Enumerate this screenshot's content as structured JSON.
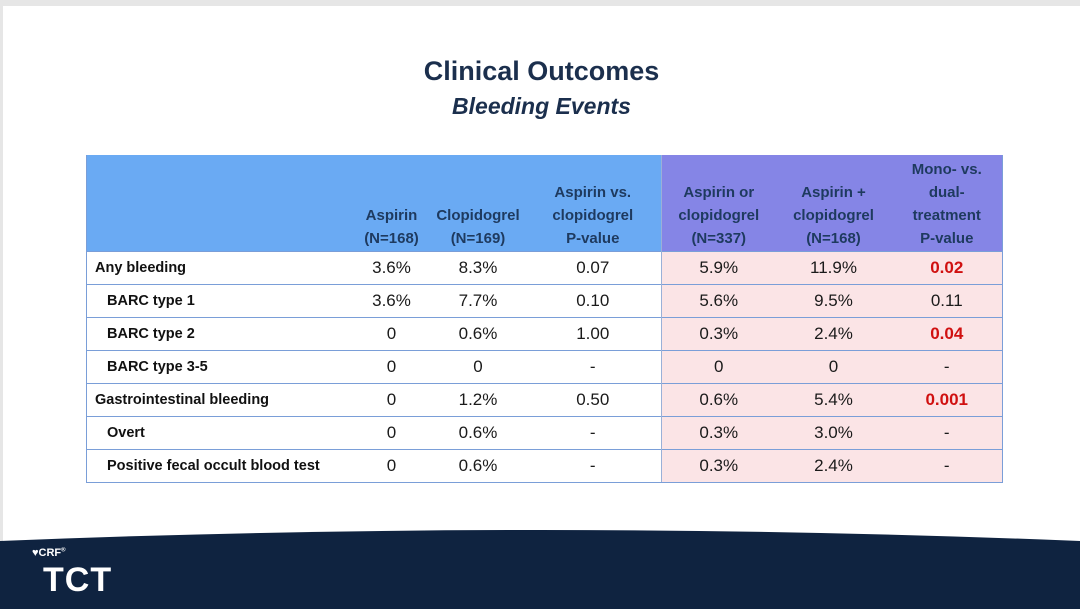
{
  "title": "Clinical Outcomes",
  "subtitle": "Bleeding Events",
  "table": {
    "headers": [
      [
        "",
        ""
      ],
      [
        "Aspirin",
        "(N=168)"
      ],
      [
        "Clopidogrel",
        "(N=169)"
      ],
      [
        "Aspirin vs.",
        "clopidogrel",
        "P-value"
      ],
      [
        "Aspirin or",
        "clopidogrel",
        "(N=337)"
      ],
      [
        "Aspirin +",
        "clopidogrel",
        "(N=168)"
      ],
      [
        "Mono- vs.",
        "dual-",
        "treatment",
        "P-value"
      ]
    ],
    "rows": [
      {
        "label": "Any bleeding",
        "sub": false,
        "cells": [
          "3.6%",
          "8.3%",
          "0.07",
          "5.9%",
          "11.9%",
          "0.02"
        ],
        "red": true
      },
      {
        "label": "BARC type 1",
        "sub": true,
        "cells": [
          "3.6%",
          "7.7%",
          "0.10",
          "5.6%",
          "9.5%",
          "0.11"
        ],
        "red": false
      },
      {
        "label": "BARC type 2",
        "sub": true,
        "cells": [
          "0",
          "0.6%",
          "1.00",
          "0.3%",
          "2.4%",
          "0.04"
        ],
        "red": true
      },
      {
        "label": "BARC type 3-5",
        "sub": true,
        "cells": [
          "0",
          "0",
          "-",
          "0",
          "0",
          "-"
        ],
        "red": false
      },
      {
        "label": "Gastrointestinal bleeding",
        "sub": false,
        "cells": [
          "0",
          "1.2%",
          "0.50",
          "0.6%",
          "5.4%",
          "0.001"
        ],
        "red": true
      },
      {
        "label": "Overt",
        "sub": true,
        "cells": [
          "0",
          "0.6%",
          "-",
          "0.3%",
          "3.0%",
          "-"
        ],
        "red": false
      },
      {
        "label": "Positive fecal occult blood test",
        "sub": true,
        "cells": [
          "0",
          "0.6%",
          "-",
          "0.3%",
          "2.4%",
          "-"
        ],
        "red": false
      }
    ]
  },
  "logo": {
    "crf": "CRF",
    "tct": "TCT"
  },
  "colors": {
    "title": "#1b2f4d",
    "header_group1": "#6aaaf3",
    "header_group2": "#8585e6",
    "body_group2": "#fbe4e6",
    "significant_p": "#d01010",
    "footer": "#0f2340"
  }
}
